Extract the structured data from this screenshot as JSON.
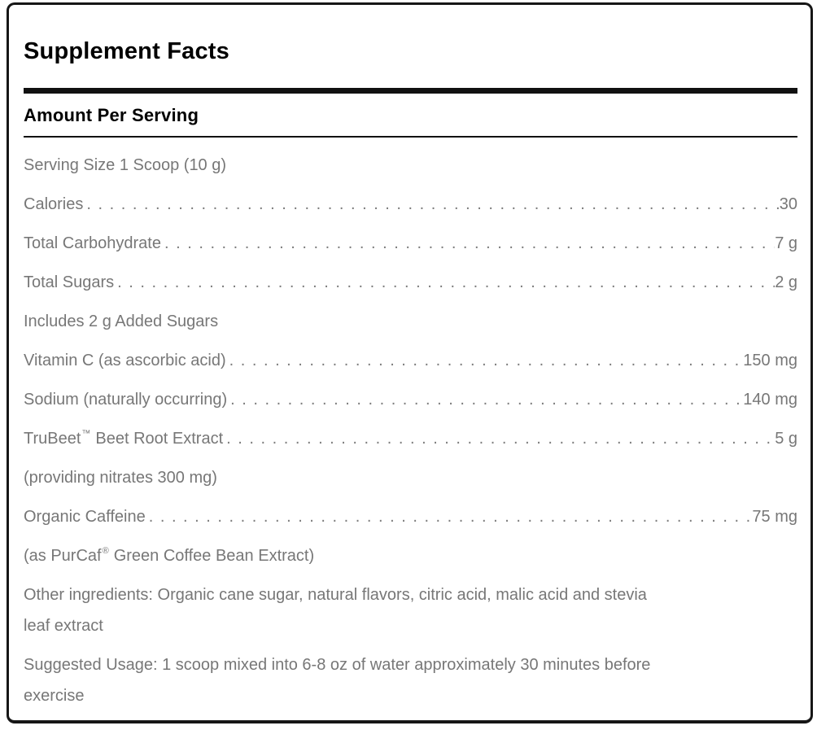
{
  "panel": {
    "title": "Supplement Facts",
    "section_header": "Amount Per Serving",
    "colors": {
      "panel_border": "#161616",
      "heading_text": "#000000",
      "body_text": "#777777",
      "rule": "#111111",
      "background": "#ffffff"
    },
    "rows": [
      {
        "type": "line",
        "label": "Serving Size 1 Scoop (10 g)",
        "value": "",
        "dots": false
      },
      {
        "type": "line",
        "label": "Calories",
        "value": "30",
        "dots": true
      },
      {
        "type": "line",
        "label": "Total Carbohydrate",
        "value": "7 g",
        "dots": true
      },
      {
        "type": "line",
        "label": "Total Sugars",
        "value": "2 g",
        "dots": true
      },
      {
        "type": "line",
        "label": "Includes 2 g Added Sugars",
        "value": "",
        "dots": false
      },
      {
        "type": "line",
        "label": "Vitamin C (as ascorbic acid)",
        "value": "150 mg",
        "dots": true
      },
      {
        "type": "line",
        "label": "Sodium (naturally occurring)",
        "value": "140 mg",
        "dots": true
      },
      {
        "type": "line",
        "label": "TruBeet",
        "sup": "™",
        "label2": "Beet Root Extract",
        "value": "5 g",
        "dots": true
      },
      {
        "type": "line",
        "label": "(providing nitrates 300 mg)",
        "value": "",
        "dots": false
      },
      {
        "type": "line",
        "label": "Organic Caffeine",
        "value": "75 mg",
        "dots": true
      },
      {
        "type": "line",
        "label": "(as PurCaf",
        "sup": "®",
        "label2": "Green Coffee Bean Extract)",
        "value": "",
        "dots": false
      },
      {
        "type": "para",
        "lines": [
          "Other ingredients: Organic cane sugar, natural flavors, citric acid, malic acid and stevia",
          "leaf extract"
        ]
      },
      {
        "type": "para",
        "lines": [
          "Suggested Usage: 1 scoop mixed into 6-8 oz of water approximately 30 minutes before",
          "exercise"
        ]
      }
    ]
  }
}
